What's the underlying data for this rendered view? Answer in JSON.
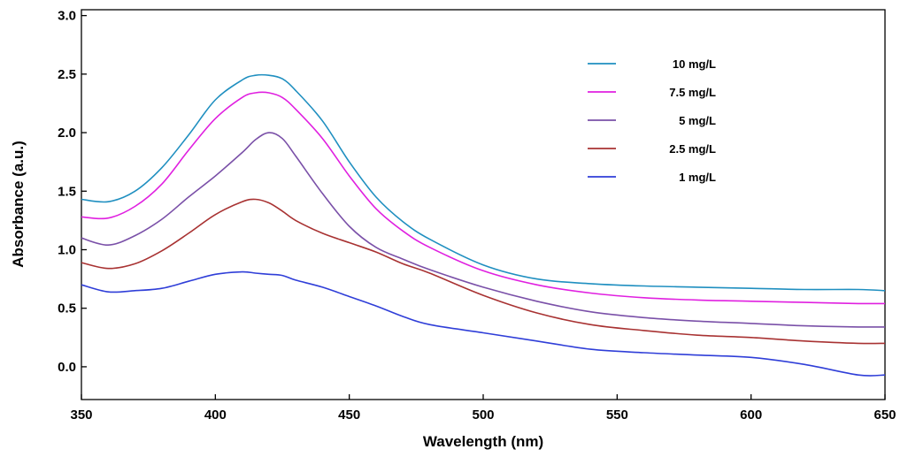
{
  "chart_data": {
    "type": "line",
    "title": "",
    "xlabel": "Wavelength (nm)",
    "ylabel": "Absorbance (a.u.)",
    "xlim": [
      350,
      650
    ],
    "ylim": [
      -0.28,
      3.05
    ],
    "xticks": [
      350,
      400,
      450,
      500,
      550,
      600,
      650
    ],
    "yticks": [
      0.0,
      0.5,
      1.0,
      1.5,
      2.0,
      2.5,
      3.0
    ],
    "xtick_labels": [
      "350",
      "400",
      "450",
      "500",
      "550",
      "600",
      "650"
    ],
    "ytick_labels": [
      "0.0",
      "0.5",
      "1.0",
      "1.5",
      "2.0",
      "2.5",
      "3.0"
    ],
    "grid": false,
    "legend_position": "top-right",
    "series": [
      {
        "name": "10 mg/L",
        "color": "#1f8fc0",
        "x": [
          350,
          360,
          370,
          380,
          390,
          400,
          410,
          415,
          420,
          425,
          430,
          440,
          450,
          460,
          470,
          480,
          500,
          520,
          540,
          560,
          580,
          600,
          620,
          640,
          650
        ],
        "y": [
          1.43,
          1.41,
          1.5,
          1.7,
          1.98,
          2.28,
          2.45,
          2.49,
          2.49,
          2.46,
          2.36,
          2.1,
          1.75,
          1.45,
          1.24,
          1.09,
          0.87,
          0.75,
          0.71,
          0.69,
          0.68,
          0.67,
          0.66,
          0.66,
          0.65
        ]
      },
      {
        "name": "7.5 mg/L",
        "color": "#e020e0",
        "x": [
          350,
          360,
          370,
          380,
          390,
          400,
          410,
          415,
          420,
          425,
          430,
          440,
          450,
          460,
          470,
          480,
          500,
          520,
          540,
          560,
          580,
          600,
          620,
          640,
          650
        ],
        "y": [
          1.28,
          1.27,
          1.37,
          1.56,
          1.85,
          2.12,
          2.3,
          2.34,
          2.34,
          2.3,
          2.2,
          1.95,
          1.63,
          1.35,
          1.16,
          1.02,
          0.82,
          0.7,
          0.63,
          0.59,
          0.57,
          0.56,
          0.55,
          0.54,
          0.54
        ]
      },
      {
        "name": "5 mg/L",
        "color": "#7a50a8",
        "x": [
          350,
          360,
          370,
          380,
          390,
          400,
          410,
          415,
          420,
          425,
          430,
          440,
          450,
          460,
          470,
          480,
          500,
          520,
          540,
          560,
          580,
          600,
          620,
          640,
          650
        ],
        "y": [
          1.1,
          1.04,
          1.12,
          1.26,
          1.45,
          1.63,
          1.83,
          1.94,
          2.0,
          1.95,
          1.8,
          1.48,
          1.2,
          1.02,
          0.92,
          0.83,
          0.68,
          0.56,
          0.47,
          0.42,
          0.39,
          0.37,
          0.35,
          0.34,
          0.34
        ]
      },
      {
        "name": "2.5 mg/L",
        "color": "#a83232",
        "x": [
          350,
          360,
          370,
          380,
          390,
          400,
          410,
          415,
          420,
          425,
          430,
          440,
          450,
          460,
          470,
          480,
          500,
          520,
          540,
          560,
          580,
          600,
          620,
          640,
          650
        ],
        "y": [
          0.89,
          0.84,
          0.88,
          0.99,
          1.14,
          1.3,
          1.41,
          1.43,
          1.4,
          1.33,
          1.25,
          1.14,
          1.06,
          0.98,
          0.88,
          0.8,
          0.61,
          0.46,
          0.36,
          0.31,
          0.27,
          0.25,
          0.22,
          0.2,
          0.2
        ]
      },
      {
        "name": "1 mg/L",
        "color": "#2f3ed8",
        "x": [
          350,
          360,
          370,
          380,
          390,
          400,
          410,
          415,
          420,
          425,
          430,
          440,
          450,
          460,
          470,
          480,
          500,
          520,
          540,
          560,
          580,
          600,
          620,
          640,
          650
        ],
        "y": [
          0.7,
          0.64,
          0.65,
          0.67,
          0.73,
          0.79,
          0.81,
          0.8,
          0.79,
          0.78,
          0.74,
          0.68,
          0.6,
          0.52,
          0.43,
          0.36,
          0.29,
          0.22,
          0.15,
          0.12,
          0.1,
          0.08,
          0.02,
          -0.07,
          -0.07
        ]
      }
    ]
  }
}
